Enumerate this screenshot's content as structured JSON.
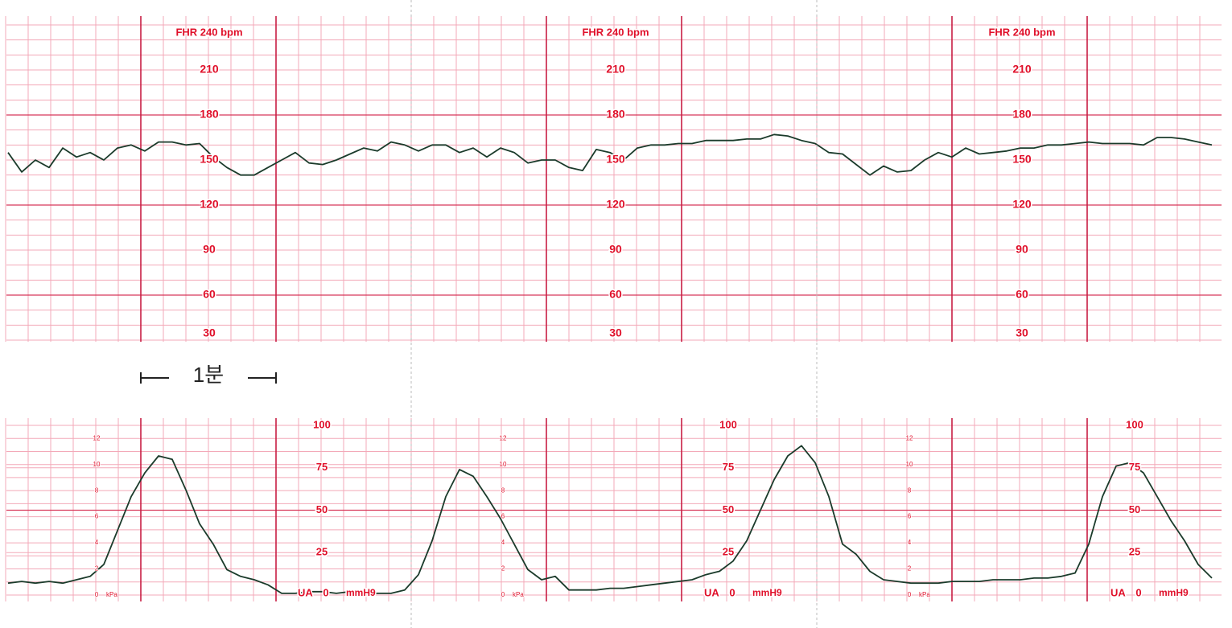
{
  "chart_data": [
    {
      "type": "line",
      "color": "#1b3b2b",
      "grid": true,
      "annotation": "1분",
      "ylim": [
        30,
        240
      ],
      "yticks": [
        30,
        60,
        90,
        120,
        150,
        180,
        210,
        {
          "value": 240,
          "label": "FHR 240 bpm"
        }
      ],
      "values": [
        155,
        142,
        150,
        145,
        158,
        152,
        155,
        150,
        158,
        160,
        156,
        162,
        162,
        160,
        161,
        152,
        145,
        140,
        140,
        145,
        150,
        155,
        148,
        147,
        150,
        154,
        158,
        156,
        162,
        160,
        156,
        160,
        160,
        155,
        158,
        152,
        158,
        155,
        148,
        150,
        150,
        145,
        143,
        157,
        155,
        150,
        158,
        160,
        160,
        161,
        161,
        163,
        163,
        163,
        164,
        164,
        167,
        166,
        163,
        161,
        155,
        154,
        147,
        140,
        146,
        142,
        143,
        150,
        155,
        152,
        158,
        154,
        155,
        156,
        158,
        158,
        160,
        160,
        161,
        162,
        161,
        161,
        161,
        160,
        165,
        165,
        164,
        162,
        160
      ]
    },
    {
      "type": "line",
      "color": "#1b3b2b",
      "grid": true,
      "ylim": [
        0,
        100
      ],
      "yticks": [
        0,
        25,
        50,
        75,
        100
      ],
      "y_label": "UA",
      "y_unit": "mmH9",
      "y2lim": [
        0,
        13
      ],
      "y2ticks": [
        0,
        2,
        4,
        6,
        8,
        10,
        12
      ],
      "y2_unit": "kPa",
      "values": [
        7,
        8,
        7,
        8,
        7,
        9,
        11,
        18,
        38,
        58,
        72,
        82,
        80,
        62,
        42,
        30,
        15,
        11,
        9,
        6,
        1,
        1,
        2,
        2,
        1,
        2,
        1,
        1,
        1,
        3,
        12,
        32,
        58,
        74,
        70,
        58,
        45,
        30,
        15,
        9,
        11,
        3,
        3,
        3,
        4,
        4,
        5,
        6,
        7,
        8,
        9,
        12,
        14,
        20,
        32,
        50,
        68,
        82,
        88,
        78,
        58,
        30,
        24,
        14,
        9,
        8,
        7,
        7,
        7,
        8,
        8,
        8,
        9,
        9,
        9,
        10,
        10,
        11,
        13,
        30,
        58,
        76,
        78,
        72,
        58,
        44,
        32,
        18,
        10
      ]
    }
  ]
}
